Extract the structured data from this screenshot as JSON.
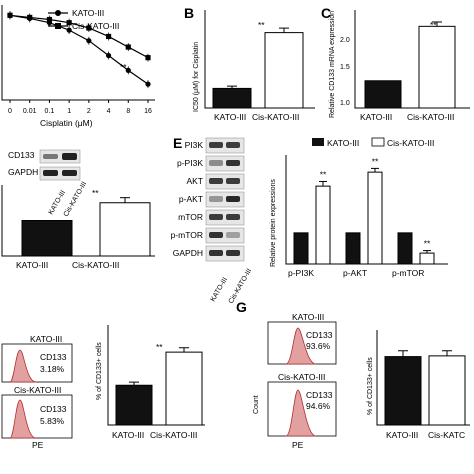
{
  "panels": {
    "A": {
      "legend": [
        "KATO-III",
        "Cis-KATO-III"
      ],
      "xlabel": "Cisplatin (μM)",
      "xticks": [
        "0",
        "0.01",
        "0.1",
        "1",
        "2",
        "4",
        "8",
        "16"
      ],
      "sig": "**"
    },
    "B": {
      "letter": "B",
      "ylabel": "IC50 (μM) for Cisplatin",
      "categories": [
        "KATO-III",
        "Cis-KATO-III"
      ],
      "sig": "**"
    },
    "C": {
      "letter": "C",
      "ylabel": "Relative CD133 mRNA expression",
      "yticks": [
        "1.0",
        "1.5",
        "2.0"
      ],
      "categories": [
        "KATO-III",
        "Cis-KATO-III"
      ],
      "sig": "**"
    },
    "D": {
      "blot_labels": [
        "CD133",
        "GAPDH"
      ],
      "lanes": [
        "KATO-III",
        "Cis-KATO-III"
      ],
      "categories": [
        "KATO-III",
        "Cis-KATO-III"
      ],
      "sig": "**"
    },
    "E": {
      "letter": "E",
      "blot_labels": [
        "PI3K",
        "p-PI3K",
        "AKT",
        "p-AKT",
        "mTOR",
        "p-mTOR",
        "GAPDH"
      ],
      "lanes": [
        "KATO-III",
        "Cis-KATO-III"
      ],
      "legend": [
        "KATO-III",
        "Cis-KATO-III"
      ],
      "ylabel": "Relative protein expressions",
      "groups": [
        "p-PI3K",
        "p-AKT",
        "p-mTOR"
      ],
      "sig": "**"
    },
    "F": {
      "flow_titles": [
        "KATO-III",
        "Cis-KATO-III"
      ],
      "gate_label": "CD133",
      "gate_values": [
        "3.18%",
        "5.83%"
      ],
      "xlabel": "PE",
      "ylabel": "% of CD133+ cells",
      "categories": [
        "KATO-III",
        "Cis-KATO-III"
      ],
      "sig": "**"
    },
    "G": {
      "letter": "G",
      "flow_titles": [
        "KATO-III",
        "Cis-KATO-III"
      ],
      "gate_label": "CD133",
      "gate_values": [
        "93.6%",
        "94.6%"
      ],
      "xlabel": "PE",
      "count_label": "Count",
      "ylabel": "% of CD133+ cells",
      "categories": [
        "KATO-III",
        "Cis-KATC"
      ]
    }
  },
  "chart_data": [
    {
      "panel": "A",
      "type": "line",
      "x": [
        "0",
        "0.01",
        "0.1",
        "1",
        "2",
        "4",
        "8",
        "16"
      ],
      "series": [
        {
          "name": "KATO-III",
          "values": [
            100,
            97,
            93,
            86,
            76,
            62,
            48,
            35
          ]
        },
        {
          "name": "Cis-KATO-III",
          "values": [
            100,
            98,
            96,
            93,
            88,
            80,
            70,
            60
          ]
        }
      ],
      "ylim": [
        20,
        105
      ]
    },
    {
      "panel": "B",
      "type": "bar",
      "categories": [
        "KATO-III",
        "Cis-KATO-III"
      ],
      "values": [
        2.6,
        10.0
      ],
      "errors": [
        0.3,
        0.6
      ],
      "ylim": [
        0,
        13
      ]
    },
    {
      "panel": "C",
      "type": "bar",
      "categories": [
        "KATO-III",
        "Cis-KATO-III"
      ],
      "values": [
        1.0,
        2.0
      ],
      "errors": [
        0,
        0.08
      ],
      "ylim": [
        0.5,
        2.3
      ]
    },
    {
      "panel": "D",
      "type": "bar",
      "categories": [
        "KATO-III",
        "Cis-KATO-III"
      ],
      "values": [
        1.0,
        1.35
      ],
      "errors": [
        0,
        0.1
      ],
      "ylim": [
        0.3,
        1.7
      ]
    },
    {
      "panel": "E",
      "type": "bar",
      "categories": [
        "p-PI3K",
        "p-AKT",
        "p-mTOR"
      ],
      "series": [
        {
          "name": "KATO-III",
          "values": [
            1.0,
            1.0,
            1.0
          ]
        },
        {
          "name": "Cis-KATO-III",
          "values": [
            2.5,
            2.95,
            0.35
          ]
        }
      ],
      "errors": [
        0.15,
        0.12,
        0.08
      ],
      "ylim": [
        0,
        3.5
      ]
    },
    {
      "panel": "F",
      "type": "bar",
      "categories": [
        "KATO-III",
        "Cis-KATO-III"
      ],
      "values": [
        3.18,
        5.83
      ],
      "errors": [
        0.25,
        0.35
      ],
      "ylim": [
        0,
        8
      ]
    },
    {
      "panel": "G",
      "type": "bar",
      "categories": [
        "KATO-III",
        "Cis-KATC"
      ],
      "values": [
        93.6,
        94.6
      ],
      "errors": [
        8,
        7
      ],
      "ylim": [
        0,
        130
      ]
    }
  ]
}
